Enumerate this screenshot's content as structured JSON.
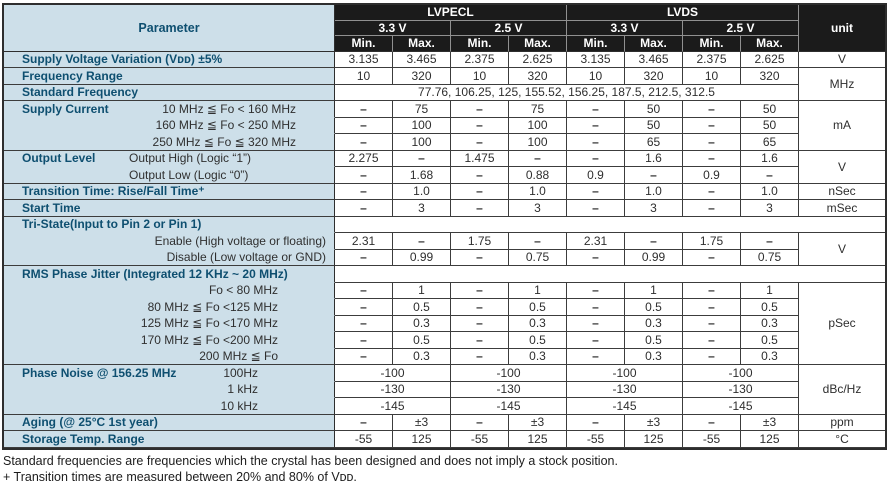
{
  "table": {
    "header": {
      "parameter": "Parameter",
      "groups": [
        "LVPECL",
        "LVDS"
      ],
      "voltages": [
        "3.3 V",
        "2.5 V",
        "3.3 V",
        "2.5 V"
      ],
      "minmax": [
        "Min.",
        "Max."
      ],
      "unit": "unit"
    },
    "rows": [
      {
        "name": "supply-voltage-variation",
        "label": "Supply Voltage Variation (Vᴅᴅ) ±5%",
        "pline": true,
        "cells": [
          "3.135",
          "3.465",
          "2.375",
          "2.625",
          "3.135",
          "3.465",
          "2.375",
          "2.625"
        ],
        "unit": {
          "t": "V",
          "rs": 1
        }
      },
      {
        "name": "frequency-range",
        "label": "Frequency Range",
        "pline": true,
        "cells": [
          "10",
          "320",
          "10",
          "320",
          "10",
          "320",
          "10",
          "320"
        ],
        "unit": {
          "t": "MHz",
          "rs": 2
        }
      },
      {
        "name": "standard-frequency",
        "label": "Standard Frequency",
        "pline": true,
        "cells": [
          {
            "t": "77.76, 106.25, 125, 155.52, 156.25, 187.5, 212.5, 312.5",
            "cs": 8
          }
        ]
      },
      {
        "name": "supply-current-1",
        "label": "Supply Current",
        "sub": "10 MHz ≦ Fo < 160 MHz",
        "subStyle": "sc",
        "pline": false,
        "cells": [
          "–",
          "75",
          "–",
          "75",
          "–",
          "50",
          "–",
          "50"
        ],
        "unit": {
          "t": "mA",
          "rs": 3
        }
      },
      {
        "name": "supply-current-2",
        "sub": "160 MHz ≦ Fo < 250 MHz",
        "subStyle": "sc",
        "pline": false,
        "cells": [
          "–",
          "100",
          "–",
          "100",
          "–",
          "50",
          "–",
          "50"
        ]
      },
      {
        "name": "supply-current-3",
        "sub": "250 MHz ≦ Fo ≦ 320 MHz",
        "subStyle": "sc",
        "pline": true,
        "cells": [
          "–",
          "100",
          "–",
          "100",
          "–",
          "65",
          "–",
          "65"
        ]
      },
      {
        "name": "output-level-high",
        "label": "Output Level",
        "sub": "Output High (Logic “1”)",
        "subStyle": "ol",
        "pline": false,
        "cells": [
          "2.275",
          "–",
          "1.475",
          "–",
          "–",
          "1.6",
          "–",
          "1.6"
        ],
        "unit": {
          "t": "V",
          "rs": 2
        }
      },
      {
        "name": "output-level-low",
        "sub": "Output Low  (Logic “0”)",
        "subStyle": "ol",
        "pline": true,
        "cells": [
          "–",
          "1.68",
          "–",
          "0.88",
          "0.9",
          "–",
          "0.9",
          "–"
        ]
      },
      {
        "name": "transition-time",
        "label": "Transition Time: Rise/Fall Time⁺",
        "pline": true,
        "cells": [
          "–",
          "1.0",
          "–",
          "1.0",
          "–",
          "1.0",
          "–",
          "1.0"
        ],
        "unit": {
          "t": "nSec",
          "rs": 1
        }
      },
      {
        "name": "start-time",
        "label": "Start Time",
        "pline": true,
        "cells": [
          "–",
          "3",
          "–",
          "3",
          "–",
          "3",
          "–",
          "3"
        ],
        "unit": {
          "t": "mSec",
          "rs": 1
        }
      },
      {
        "name": "tri-state-header",
        "label": "Tri-State(Input to Pin 2 or Pin 1)",
        "pline": false,
        "strip": true
      },
      {
        "name": "tri-state-enable",
        "sub": "Enable (High voltage or floating)",
        "subStyle": "ts",
        "pline": false,
        "cells": [
          "2.31",
          "–",
          "1.75",
          "–",
          "2.31",
          "–",
          "1.75",
          "–"
        ],
        "unit": {
          "t": "V",
          "rs": 2
        }
      },
      {
        "name": "tri-state-disable",
        "sub": "Disable (Low voltage or GND)",
        "subStyle": "ts",
        "pline": true,
        "cells": [
          "–",
          "0.99",
          "–",
          "0.75",
          "–",
          "0.99",
          "–",
          "0.75"
        ]
      },
      {
        "name": "rms-phase-jitter-header",
        "label": "RMS Phase Jitter  (Integrated 12 KHz ~ 20 MHz)",
        "pline": false,
        "strip": true
      },
      {
        "name": "jitter-below-80",
        "sub": "Fo <  80 MHz",
        "subStyle": "pj",
        "pline": false,
        "cells": [
          "–",
          "1",
          "–",
          "1",
          "–",
          "1",
          "–",
          "1"
        ],
        "unit": {
          "t": "pSec",
          "rs": 5
        }
      },
      {
        "name": "jitter-80-125",
        "sub": "80 MHz ≦ Fo <125 MHz",
        "subStyle": "pj",
        "pline": false,
        "cells": [
          "–",
          "0.5",
          "–",
          "0.5",
          "–",
          "0.5",
          "–",
          "0.5"
        ]
      },
      {
        "name": "jitter-125-170",
        "sub": "125 MHz ≦ Fo <170 MHz",
        "subStyle": "pj",
        "pline": false,
        "cells": [
          "–",
          "0.3",
          "–",
          "0.3",
          "–",
          "0.3",
          "–",
          "0.3"
        ]
      },
      {
        "name": "jitter-170-200",
        "sub": "170 MHz ≦ Fo <200 MHz",
        "subStyle": "pj",
        "pline": false,
        "cells": [
          "–",
          "0.5",
          "–",
          "0.5",
          "–",
          "0.5",
          "–",
          "0.5"
        ]
      },
      {
        "name": "jitter-200-up",
        "sub": "200 MHz ≦ Fo",
        "subStyle": "pj",
        "pline": true,
        "cells": [
          "–",
          "0.3",
          "–",
          "0.3",
          "–",
          "0.3",
          "–",
          "0.3"
        ]
      },
      {
        "name": "phase-noise-100hz",
        "label": "Phase Noise @ 156.25 MHz",
        "sub": "100Hz",
        "subStyle": "pn",
        "pline": false,
        "cells": [
          {
            "t": "-100",
            "cs": 2
          },
          {
            "t": "-100",
            "cs": 2
          },
          {
            "t": "-100",
            "cs": 2
          },
          {
            "t": "-100",
            "cs": 2
          }
        ],
        "unit": {
          "t": "dBc/Hz",
          "rs": 3
        }
      },
      {
        "name": "phase-noise-1khz",
        "sub": "1 kHz",
        "subStyle": "pn",
        "pline": false,
        "cells": [
          {
            "t": "-130",
            "cs": 2
          },
          {
            "t": "-130",
            "cs": 2
          },
          {
            "t": "-130",
            "cs": 2
          },
          {
            "t": "-130",
            "cs": 2
          }
        ]
      },
      {
        "name": "phase-noise-10khz",
        "sub": "10 kHz",
        "subStyle": "pn",
        "pline": true,
        "cells": [
          {
            "t": "-145",
            "cs": 2
          },
          {
            "t": "-145",
            "cs": 2
          },
          {
            "t": "-145",
            "cs": 2
          },
          {
            "t": "-145",
            "cs": 2
          }
        ]
      },
      {
        "name": "aging",
        "label": "Aging (@ 25°C 1st year)",
        "pline": true,
        "cells": [
          "–",
          "±3",
          "–",
          "±3",
          "–",
          "±3",
          "–",
          "±3"
        ],
        "unit": {
          "t": "ppm",
          "rs": 1
        }
      },
      {
        "name": "storage-temp-range",
        "label": "Storage Temp. Range",
        "pline": true,
        "cells": [
          "-55",
          "125",
          "-55",
          "125",
          "-55",
          "125",
          "-55",
          "125"
        ],
        "unit": {
          "t": "°C",
          "rs": 1
        }
      }
    ]
  },
  "footnotes": [
    "Standard frequencies are frequencies which the crystal has been designed and does not imply a stock position.",
    "+ Transition times are measured between 20% and 80% of Vᴅᴅ."
  ],
  "colors": {
    "header_bg": "#1b1b1b",
    "header_text": "#ffffff",
    "param_bg": "#cddfe9",
    "param_text": "#0e4f70",
    "grid_line": "#3c3c3c"
  }
}
